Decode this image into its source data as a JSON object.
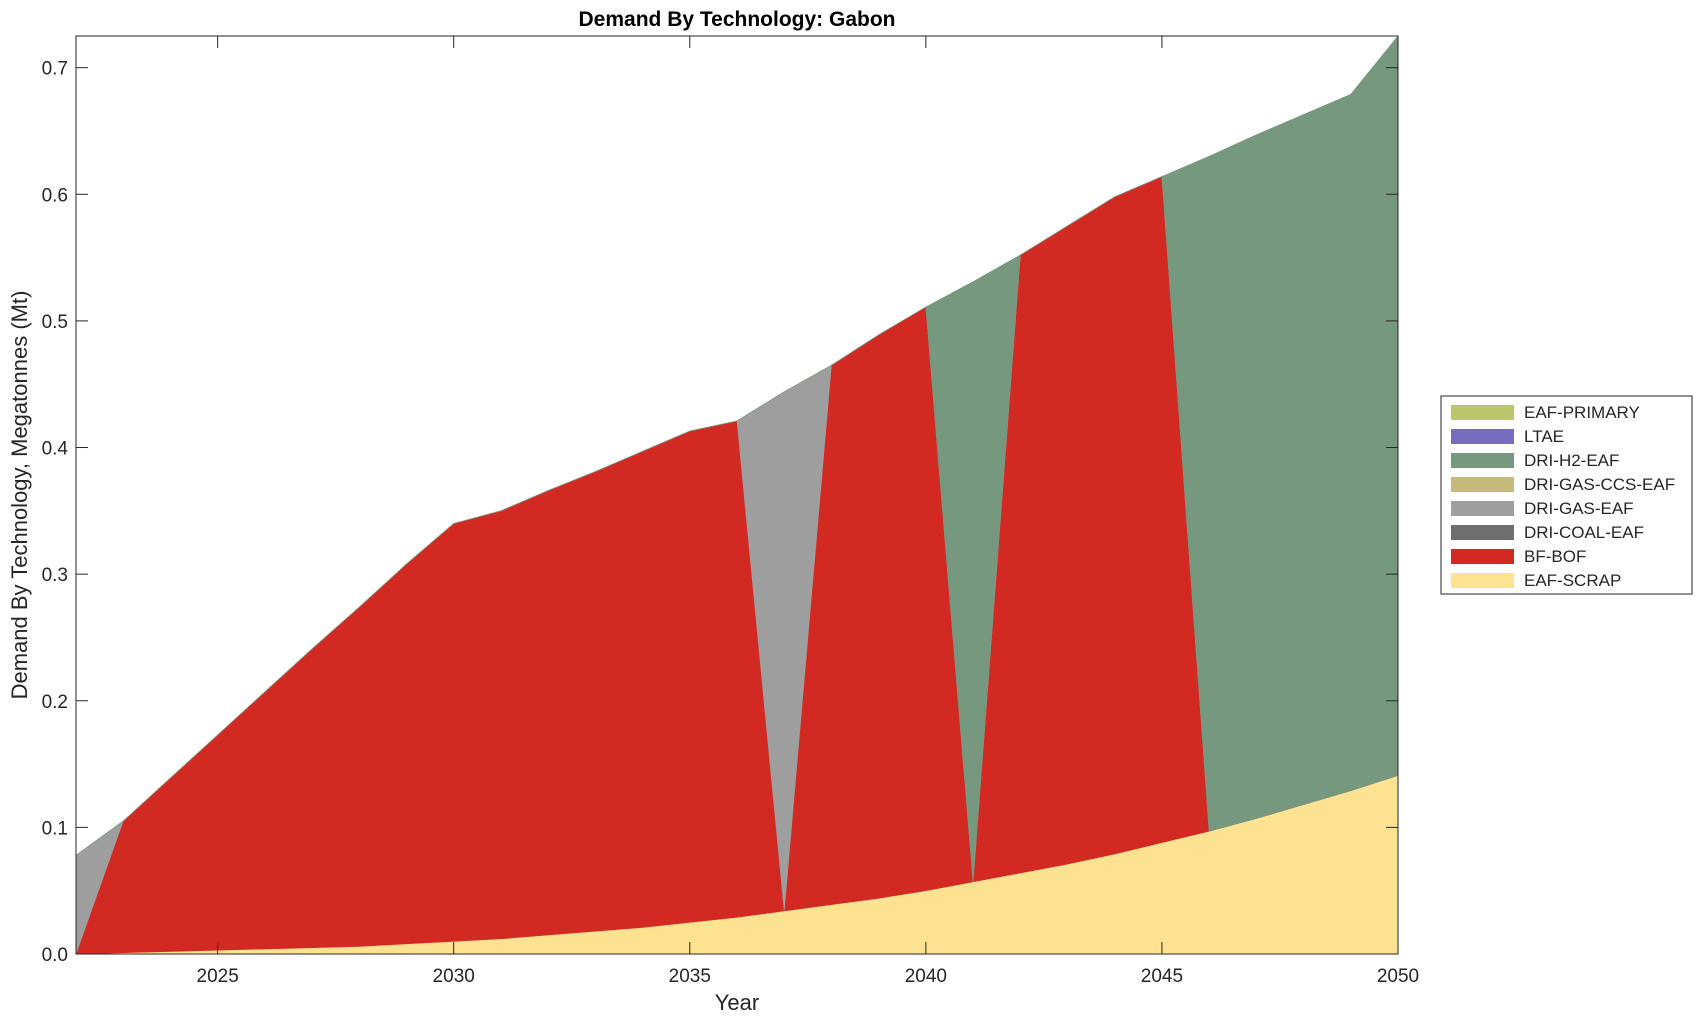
{
  "chart_data": {
    "type": "area",
    "title": "Demand By Technology: Gabon",
    "xlabel": "Year",
    "ylabel": "Demand By Technology, Megatonnes (Mt)",
    "xlim": [
      2022,
      2050
    ],
    "ylim": [
      0,
      0.725
    ],
    "x_ticks": [
      "2025",
      "2030",
      "2035",
      "2040",
      "2045",
      "2050"
    ],
    "y_ticks": [
      "0.0",
      "0.1",
      "0.2",
      "0.3",
      "0.4",
      "0.5",
      "0.6",
      "0.7"
    ],
    "legend_position": "right",
    "grid": false,
    "x": [
      2022,
      2023,
      2024,
      2025,
      2026,
      2027,
      2028,
      2029,
      2030,
      2031,
      2032,
      2033,
      2034,
      2035,
      2036,
      2037,
      2038,
      2039,
      2040,
      2041,
      2042,
      2043,
      2044,
      2045,
      2046,
      2047,
      2048,
      2049,
      2050
    ],
    "series": [
      {
        "name": "EAF-SCRAP",
        "color": "#FDE391",
        "values": [
          0.0,
          0.001,
          0.002,
          0.003,
          0.004,
          0.005,
          0.006,
          0.008,
          0.01,
          0.012,
          0.015,
          0.018,
          0.021,
          0.025,
          0.029,
          0.034,
          0.039,
          0.044,
          0.05,
          0.057,
          0.064,
          0.071,
          0.079,
          0.088,
          0.097,
          0.107,
          0.118,
          0.129,
          0.141
        ]
      },
      {
        "name": "BF-BOF",
        "color": "#D22A23",
        "values": [
          0.0,
          0.104,
          0.137,
          0.17,
          0.203,
          0.236,
          0.268,
          0.3,
          0.33,
          0.338,
          0.351,
          0.363,
          0.376,
          0.388,
          0.392,
          0.0,
          0.426,
          0.445,
          0.461,
          0.0,
          0.488,
          0.504,
          0.519,
          0.526,
          0.0,
          0.0,
          0.0,
          0.0,
          0.0
        ]
      },
      {
        "name": "DRI-COAL-EAF",
        "color": "#6E6E6E",
        "values": [
          0,
          0,
          0,
          0,
          0,
          0,
          0,
          0,
          0,
          0,
          0,
          0,
          0,
          0,
          0,
          0,
          0,
          0,
          0,
          0,
          0,
          0,
          0,
          0,
          0,
          0,
          0,
          0,
          0
        ]
      },
      {
        "name": "DRI-GAS-EAF",
        "color": "#9E9E9E",
        "values": [
          0.078,
          0.0,
          0.0,
          0.0,
          0.0,
          0.0,
          0.0,
          0.0,
          0.0,
          0.0,
          0.0,
          0.0,
          0.0,
          0.0,
          0.0,
          0.41,
          0.0,
          0.0,
          0.0,
          0.0,
          0.0,
          0.0,
          0.0,
          0.0,
          0.0,
          0.0,
          0.0,
          0.0,
          0.0
        ]
      },
      {
        "name": "DRI-GAS-CCS-EAF",
        "color": "#C5B97C",
        "values": [
          0,
          0,
          0,
          0,
          0,
          0,
          0,
          0,
          0,
          0,
          0,
          0,
          0,
          0,
          0,
          0,
          0,
          0,
          0,
          0,
          0,
          0,
          0,
          0,
          0,
          0,
          0,
          0,
          0
        ]
      },
      {
        "name": "DRI-H2-EAF",
        "color": "#76987E",
        "values": [
          0.0,
          0.0,
          0.0,
          0.0,
          0.0,
          0.0,
          0.0,
          0.0,
          0.0,
          0.0,
          0.0,
          0.0,
          0.0,
          0.0,
          0.0,
          0.0,
          0.0,
          0.0,
          0.0,
          0.474,
          0.0,
          0.0,
          0.0,
          0.0,
          0.533,
          0.54,
          0.545,
          0.55,
          0.584
        ]
      },
      {
        "name": "LTAE",
        "color": "#766EBC",
        "values": [
          0,
          0,
          0,
          0,
          0,
          0,
          0,
          0,
          0,
          0,
          0,
          0,
          0,
          0,
          0,
          0,
          0,
          0,
          0,
          0,
          0,
          0,
          0,
          0,
          0,
          0,
          0,
          0,
          0
        ]
      },
      {
        "name": "EAF-PRIMARY",
        "color": "#BCC46C",
        "values": [
          0,
          0,
          0,
          0,
          0,
          0,
          0,
          0,
          0,
          0,
          0,
          0,
          0,
          0,
          0,
          0,
          0,
          0,
          0,
          0,
          0,
          0,
          0,
          0,
          0,
          0,
          0,
          0,
          0
        ]
      }
    ],
    "legend_order": [
      "EAF-PRIMARY",
      "LTAE",
      "DRI-H2-EAF",
      "DRI-GAS-CCS-EAF",
      "DRI-GAS-EAF",
      "DRI-COAL-EAF",
      "BF-BOF",
      "EAF-SCRAP"
    ]
  }
}
